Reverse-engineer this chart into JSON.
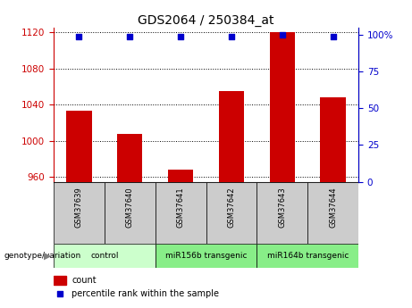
{
  "title": "GDS2064 / 250384_at",
  "samples": [
    "GSM37639",
    "GSM37640",
    "GSM37641",
    "GSM37642",
    "GSM37643",
    "GSM37644"
  ],
  "bar_values": [
    1033,
    1008,
    968,
    1055,
    1120,
    1048
  ],
  "percentile_values": [
    99,
    99,
    99,
    99,
    100,
    99
  ],
  "ylim_left": [
    955,
    1125
  ],
  "ylim_right": [
    0,
    105
  ],
  "yticks_left": [
    960,
    1000,
    1040,
    1080,
    1120
  ],
  "yticks_right": [
    0,
    25,
    50,
    75,
    100
  ],
  "ytick_labels_right": [
    "0",
    "25",
    "50",
    "75",
    "100%"
  ],
  "bar_color": "#cc0000",
  "dot_color": "#0000cc",
  "bar_width": 0.5,
  "group_info": [
    {
      "start": 0,
      "end": 1,
      "label": "control",
      "color": "#ccffcc"
    },
    {
      "start": 2,
      "end": 3,
      "label": "miR156b transgenic",
      "color": "#88ee88"
    },
    {
      "start": 4,
      "end": 5,
      "label": "miR164b transgenic",
      "color": "#88ee88"
    }
  ],
  "legend_bar_label": "count",
  "legend_dot_label": "percentile rank within the sample",
  "genotype_label": "genotype/variation",
  "left_color": "#cc0000",
  "right_color": "#0000cc",
  "bg_table": "#cccccc"
}
